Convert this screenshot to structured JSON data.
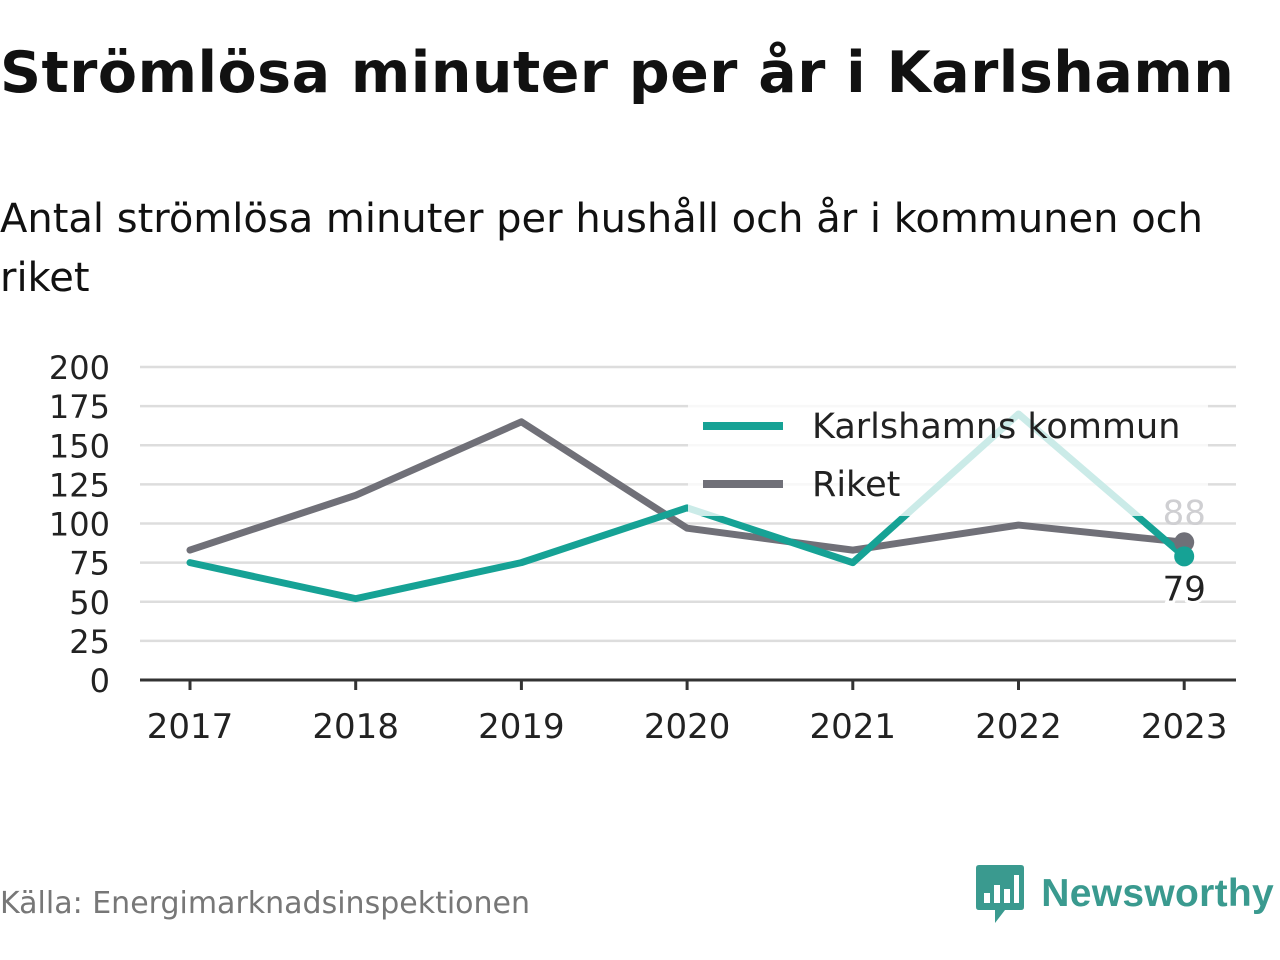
{
  "title": "Strömlösa minuter per år i Karlshamn",
  "subtitle": "Antal strömlösa minuter per hushåll och år i kommunen och riket",
  "source": "Källa: Energimarknadsinspektionen",
  "brand": {
    "name": "Newsworthy",
    "icon": "newsworthy-logo-icon",
    "color": "#3a9a8f"
  },
  "colors": {
    "karlshamn": "#16a295",
    "riket": "#707078",
    "grid": "#dddddd",
    "axis": "#333333"
  },
  "chart_data": {
    "type": "line",
    "categories": [
      "2017",
      "2018",
      "2019",
      "2020",
      "2021",
      "2022",
      "2023"
    ],
    "ylim": [
      0,
      200
    ],
    "yticks": [
      0,
      25,
      50,
      75,
      100,
      125,
      150,
      175,
      200
    ],
    "grid": true,
    "legend_position": "top-right",
    "series": [
      {
        "name": "Karlshamns kommun",
        "key": "karlshamn",
        "values": [
          75,
          52,
          75,
          110,
          75,
          170,
          79
        ]
      },
      {
        "name": "Riket",
        "key": "riket",
        "values": [
          83,
          118,
          165,
          97,
          83,
          99,
          88
        ]
      }
    ],
    "end_labels": {
      "karlshamn": "79",
      "riket": "88"
    }
  }
}
